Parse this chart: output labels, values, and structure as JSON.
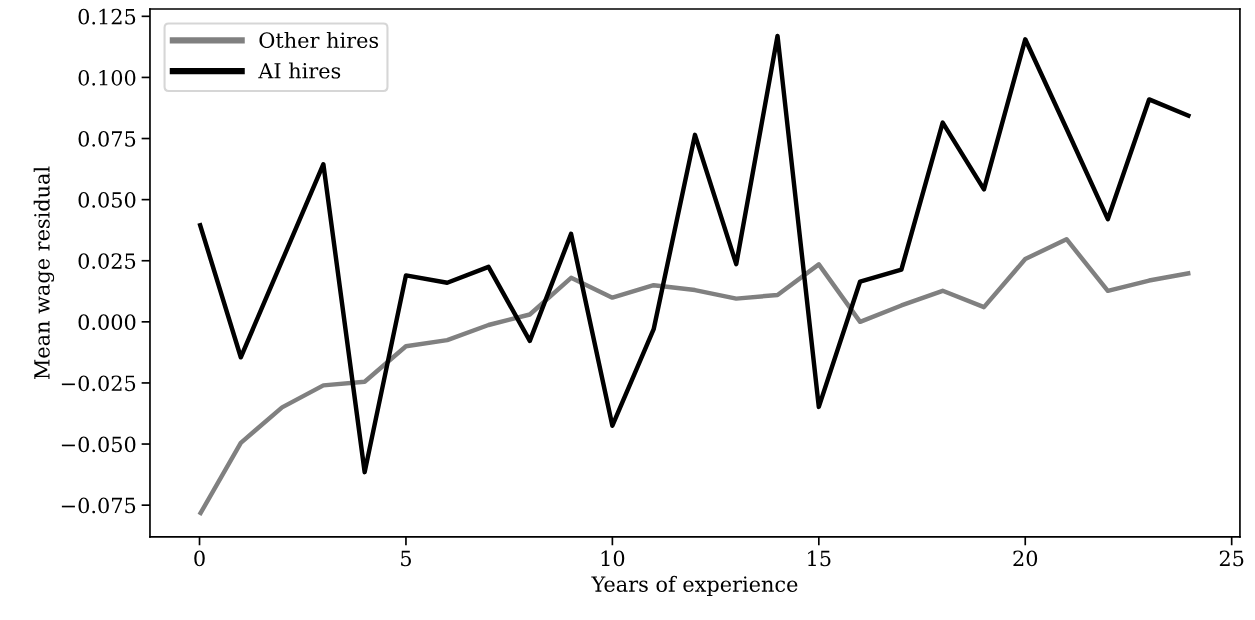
{
  "chart_data": {
    "type": "line",
    "xlabel": "Years of experience",
    "ylabel": "Mean wage residual",
    "x": [
      0,
      1,
      2,
      3,
      4,
      5,
      6,
      7,
      8,
      9,
      10,
      11,
      12,
      13,
      14,
      15,
      16,
      17,
      18,
      19,
      20,
      21,
      22,
      23,
      24
    ],
    "series": [
      {
        "name": "Other hires",
        "color": "#808080",
        "values": [
          -0.079,
          -0.0495,
          -0.035,
          -0.026,
          -0.0245,
          -0.01,
          -0.0075,
          -0.0013,
          0.003,
          0.018,
          0.0099,
          0.015,
          0.013,
          0.0095,
          0.011,
          0.0235,
          0.0,
          0.0067,
          0.0127,
          0.006,
          0.0257,
          0.0338,
          0.0127,
          0.0169,
          0.02
        ]
      },
      {
        "name": "AI hires",
        "color": "#000000",
        "values": [
          0.0404,
          -0.0145,
          0.025,
          0.0645,
          -0.0615,
          0.019,
          0.016,
          0.0225,
          -0.0078,
          0.036,
          -0.0425,
          -0.003,
          0.0765,
          0.0236,
          0.117,
          -0.0348,
          0.0165,
          0.0214,
          0.0815,
          0.0542,
          0.1156,
          0.079,
          0.042,
          0.091,
          0.084
        ]
      }
    ],
    "xlim": [
      -1.2,
      25.2
    ],
    "ylim": [
      -0.088,
      0.128
    ],
    "xticks": [
      0,
      5,
      10,
      15,
      20,
      25
    ],
    "yticks": [
      {
        "value": -0.075,
        "label": "−0.075"
      },
      {
        "value": -0.05,
        "label": "−0.050"
      },
      {
        "value": -0.025,
        "label": "−0.025"
      },
      {
        "value": 0.0,
        "label": "0.000"
      },
      {
        "value": 0.025,
        "label": "0.025"
      },
      {
        "value": 0.05,
        "label": "0.050"
      },
      {
        "value": 0.075,
        "label": "0.075"
      },
      {
        "value": 0.1,
        "label": "0.100"
      },
      {
        "value": 0.125,
        "label": "0.125"
      }
    ],
    "grid": false,
    "legend": "top left",
    "marker": "none",
    "line_style": "solid"
  }
}
